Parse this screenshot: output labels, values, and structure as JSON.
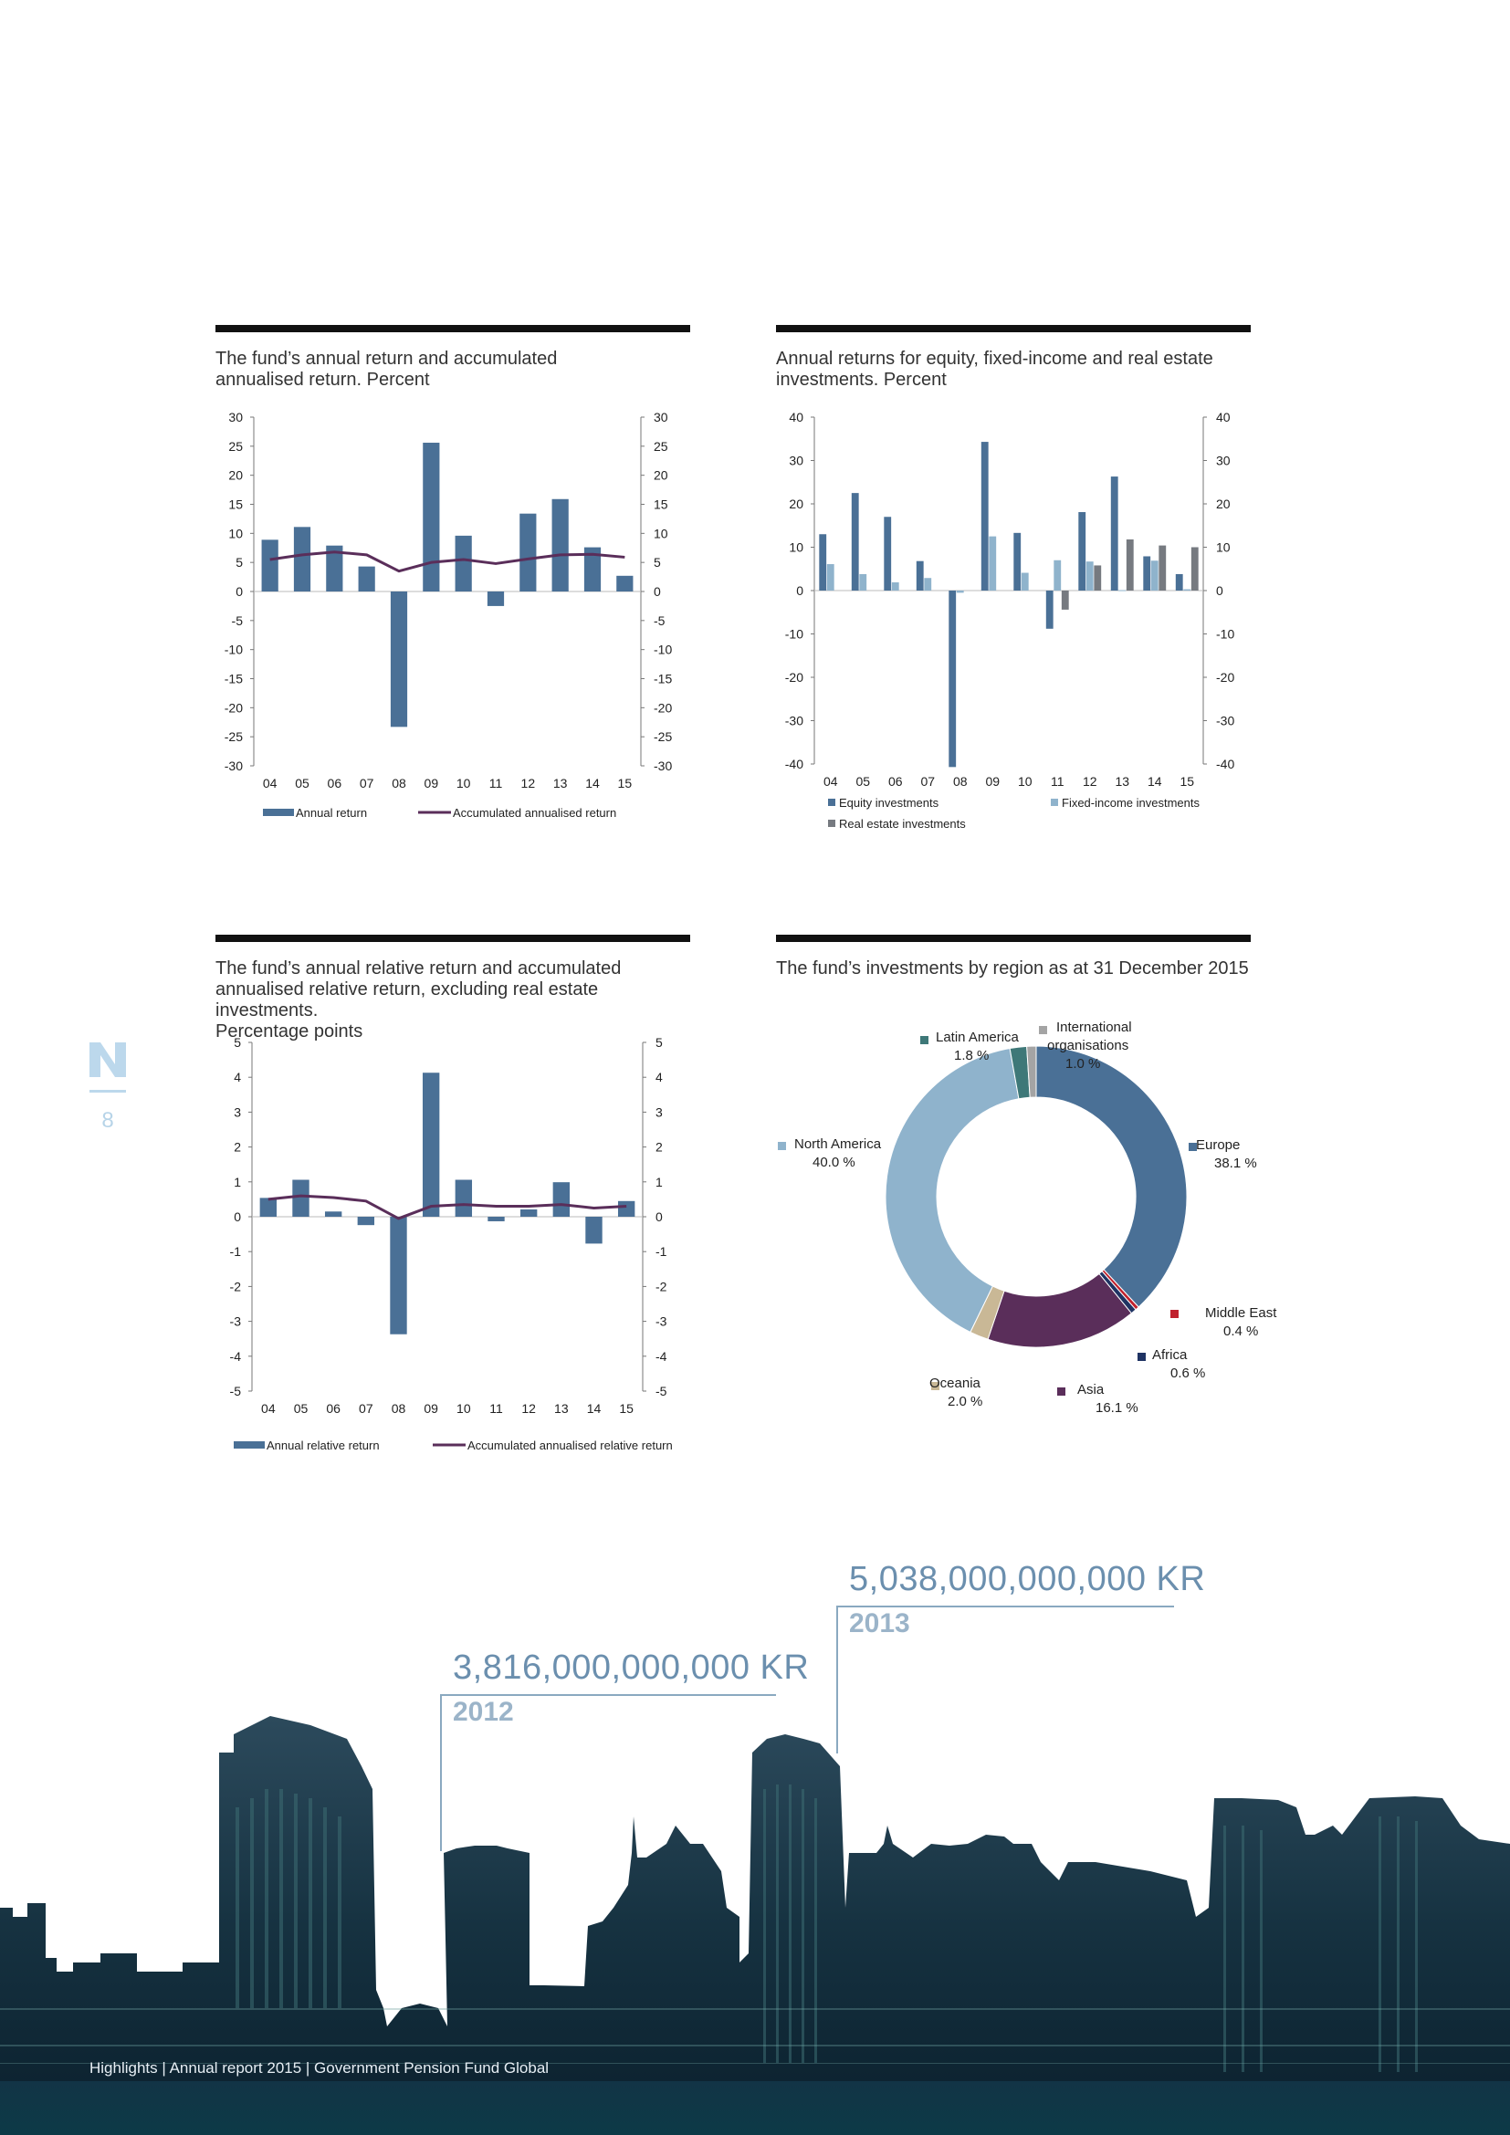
{
  "page": {
    "number": "8",
    "footer": "Highlights | Annual report 2015 | Government Pension Fund Global"
  },
  "colors": {
    "primary": "#4a7096",
    "light": "#8fb3cc",
    "gray": "#767a80",
    "purple": "#5a2e5a",
    "rule": "#111111"
  },
  "panels": {
    "annual_return": {
      "title": "The fund’s annual return and accumulated annualised return. Percent",
      "title_lines": [
        "The fund’s annual return and accumulated",
        "annualised return. Percent"
      ]
    },
    "asset_class": {
      "title": "Annual returns for equity, fixed-income and real estate investments. Percent",
      "title_lines": [
        "Annual returns for equity, fixed-income and real estate",
        "investments. Percent"
      ]
    },
    "relative_return": {
      "title": "The fund’s annual relative return and accumulated annualised relative return, excluding real estate investments. Percentage points",
      "title_lines": [
        "The fund’s annual relative return and accumulated",
        "annualised relative return, excluding real estate investments.",
        "Percentage points"
      ]
    },
    "region": {
      "title": "The fund’s investments by region as at 31 December 2015"
    }
  },
  "chart_data": [
    {
      "type": "bar",
      "title": "The fund’s annual return and accumulated annualised return. Percent",
      "categories": [
        "04",
        "05",
        "06",
        "07",
        "08",
        "09",
        "10",
        "11",
        "12",
        "13",
        "14",
        "15"
      ],
      "series": [
        {
          "name": "Annual return",
          "type": "bar",
          "color": "#4a7096",
          "values": [
            8.9,
            11.1,
            7.9,
            4.3,
            -23.3,
            25.6,
            9.6,
            -2.5,
            13.4,
            15.9,
            7.6,
            2.7
          ]
        },
        {
          "name": "Accumulated annualised return",
          "type": "line",
          "color": "#5a2e5a",
          "values": [
            5.5,
            6.3,
            6.8,
            6.3,
            3.5,
            5.0,
            5.5,
            4.8,
            5.6,
            6.3,
            6.4,
            5.9
          ]
        }
      ],
      "ylim": [
        -30,
        30
      ],
      "yticks": [
        30,
        25,
        20,
        15,
        10,
        5,
        0,
        -5,
        -10,
        -15,
        -20,
        -25,
        -30
      ],
      "legend": "bottom",
      "grid": false
    },
    {
      "type": "bar",
      "title": "Annual returns for equity, fixed-income and real estate investments. Percent",
      "categories": [
        "04",
        "05",
        "06",
        "07",
        "08",
        "09",
        "10",
        "11",
        "12",
        "13",
        "14",
        "15"
      ],
      "series": [
        {
          "name": "Equity investments",
          "color": "#4a7096",
          "values": [
            13.0,
            22.5,
            17.0,
            6.8,
            -40.7,
            34.3,
            13.3,
            -8.8,
            18.1,
            26.3,
            7.9,
            3.8
          ]
        },
        {
          "name": "Fixed-income investments",
          "color": "#8fb3cc",
          "values": [
            6.1,
            3.8,
            1.9,
            2.9,
            -0.5,
            12.5,
            4.1,
            7.0,
            6.7,
            0.1,
            6.9,
            0.3
          ]
        },
        {
          "name": "Real estate investments",
          "color": "#767a80",
          "values": [
            null,
            null,
            null,
            null,
            null,
            null,
            null,
            -4.4,
            5.8,
            11.8,
            10.4,
            10.0
          ]
        }
      ],
      "ylim": [
        -40,
        40
      ],
      "yticks": [
        40,
        30,
        20,
        10,
        0,
        -10,
        -20,
        -30,
        -40
      ],
      "legend": "bottom",
      "grid": false
    },
    {
      "type": "bar",
      "title": "The fund’s annual relative return and accumulated annualised relative return, excluding real estate investments. Percentage points",
      "categories": [
        "04",
        "05",
        "06",
        "07",
        "08",
        "09",
        "10",
        "11",
        "12",
        "13",
        "14",
        "15"
      ],
      "series": [
        {
          "name": "Annual relative return",
          "type": "bar",
          "color": "#4a7096",
          "values": [
            0.54,
            1.06,
            0.15,
            -0.24,
            -3.37,
            4.13,
            1.06,
            -0.13,
            0.21,
            0.99,
            -0.77,
            0.45
          ]
        },
        {
          "name": "Accumulated annualised relative return",
          "type": "line",
          "color": "#5a2e5a",
          "values": [
            0.5,
            0.6,
            0.55,
            0.45,
            -0.05,
            0.3,
            0.35,
            0.3,
            0.3,
            0.35,
            0.25,
            0.3
          ]
        }
      ],
      "ylim": [
        -5,
        5
      ],
      "yticks": [
        5,
        4,
        3,
        2,
        1,
        0,
        -1,
        -2,
        -3,
        -4,
        -5
      ],
      "legend": "bottom",
      "grid": false
    },
    {
      "type": "pie",
      "title": "The fund’s investments by region as at 31 December 2015",
      "slices": [
        {
          "label": "Europe",
          "value": 38.1,
          "value_label": "38.1 %",
          "color": "#4a7096"
        },
        {
          "label": "Middle East",
          "value": 0.4,
          "value_label": "0.4 %",
          "color": "#c0222e"
        },
        {
          "label": "Africa",
          "value": 0.6,
          "value_label": "0.6 %",
          "color": "#1f3363"
        },
        {
          "label": "Asia",
          "value": 16.1,
          "value_label": "16.1 %",
          "color": "#5a2e5a"
        },
        {
          "label": "Oceania",
          "value": 2.0,
          "value_label": "2.0 %",
          "color": "#c9b896"
        },
        {
          "label": "North America",
          "value": 40.0,
          "value_label": "40.0 %",
          "color": "#8fb3cc"
        },
        {
          "label": "Latin America",
          "value": 1.8,
          "value_label": "1.8 %",
          "color": "#3e7878"
        },
        {
          "label": "International organisations",
          "value": 1.0,
          "value_label": "1.0 %",
          "color": "#a4a4a4"
        }
      ]
    }
  ],
  "milestones": [
    {
      "amount": "3,816,000,000,000 KR",
      "year": "2012"
    },
    {
      "amount": "5,038,000,000,000 KR",
      "year": "2013"
    }
  ]
}
